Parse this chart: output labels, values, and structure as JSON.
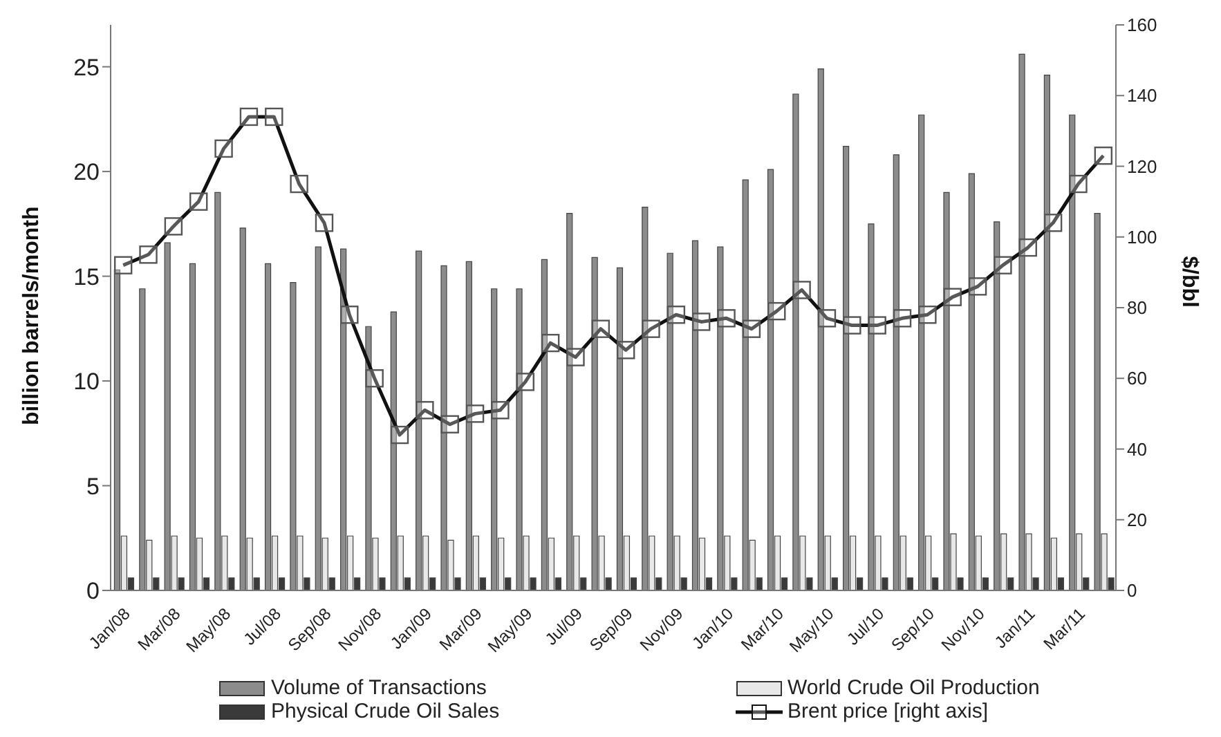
{
  "chart_data": {
    "type": "bar",
    "ylabel": "billion barrels/month",
    "y2label": "$/bbl",
    "categories": [
      "Jan/08",
      null,
      "Mar/08",
      null,
      "May/08",
      null,
      "Jul/08",
      null,
      "Sep/08",
      null,
      "Nov/08",
      null,
      "Jan/09",
      null,
      "Mar/09",
      null,
      "May/09",
      null,
      "Jul/09",
      null,
      "Sep/09",
      null,
      "Nov/09",
      null,
      "Jan/10",
      null,
      "Mar/10",
      null,
      "May/10",
      null,
      "Jul/10",
      null,
      "Sep/10",
      null,
      "Nov/10",
      null,
      "Jan/11",
      null,
      "Mar/11",
      null
    ],
    "series": [
      {
        "name": "Volume of Transactions",
        "color": "#8c8c8c",
        "values": [
          15.3,
          14.4,
          16.6,
          15.6,
          19.0,
          17.3,
          15.6,
          14.7,
          16.4,
          16.3,
          12.6,
          13.3,
          16.2,
          15.5,
          15.7,
          14.4,
          14.4,
          15.8,
          18.0,
          15.9,
          15.4,
          18.3,
          16.1,
          16.7,
          16.4,
          19.6,
          20.1,
          23.7,
          24.9,
          21.2,
          17.5,
          20.8,
          22.7,
          19.0,
          19.9,
          17.6,
          25.6,
          24.6,
          22.7,
          18.0
        ]
      },
      {
        "name": "World Crude Oil Production",
        "color": "#e8e8e8",
        "values": [
          2.6,
          2.4,
          2.6,
          2.5,
          2.6,
          2.5,
          2.6,
          2.6,
          2.5,
          2.6,
          2.5,
          2.6,
          2.6,
          2.4,
          2.6,
          2.5,
          2.6,
          2.5,
          2.6,
          2.6,
          2.6,
          2.6,
          2.6,
          2.5,
          2.6,
          2.4,
          2.6,
          2.6,
          2.6,
          2.6,
          2.6,
          2.6,
          2.6,
          2.7,
          2.6,
          2.7,
          2.7,
          2.5,
          2.7,
          2.7
        ]
      },
      {
        "name": "Physical Crude Oil Sales",
        "color": "#3a3a3a",
        "values": [
          0.6,
          0.6,
          0.6,
          0.6,
          0.6,
          0.6,
          0.6,
          0.6,
          0.6,
          0.6,
          0.6,
          0.6,
          0.6,
          0.6,
          0.6,
          0.6,
          0.6,
          0.6,
          0.6,
          0.6,
          0.6,
          0.6,
          0.6,
          0.6,
          0.6,
          0.6,
          0.6,
          0.6,
          0.6,
          0.6,
          0.6,
          0.6,
          0.6,
          0.6,
          0.6,
          0.6,
          0.6,
          0.6,
          0.6,
          0.6
        ]
      },
      {
        "name": "Brent price [right axis]",
        "type": "line",
        "axis": "y2",
        "color": "#111111",
        "marker": "square",
        "values": [
          92,
          95,
          103,
          110,
          125,
          134,
          134,
          115,
          104,
          78,
          60,
          44,
          51,
          47,
          50,
          51,
          59,
          70,
          66,
          74,
          68,
          74,
          78,
          76,
          77,
          74,
          79,
          85,
          77,
          75,
          75,
          77,
          78,
          83,
          86,
          92,
          97,
          104,
          115,
          123
        ]
      }
    ],
    "ylim": [
      0,
      27
    ],
    "yticks": [
      0,
      5,
      10,
      15,
      20,
      25
    ],
    "y2lim": [
      0,
      160
    ],
    "y2ticks": [
      0,
      20,
      40,
      60,
      80,
      100,
      120,
      140,
      160
    ],
    "grid": false,
    "legend": "bottom",
    "line_style": "solid"
  }
}
